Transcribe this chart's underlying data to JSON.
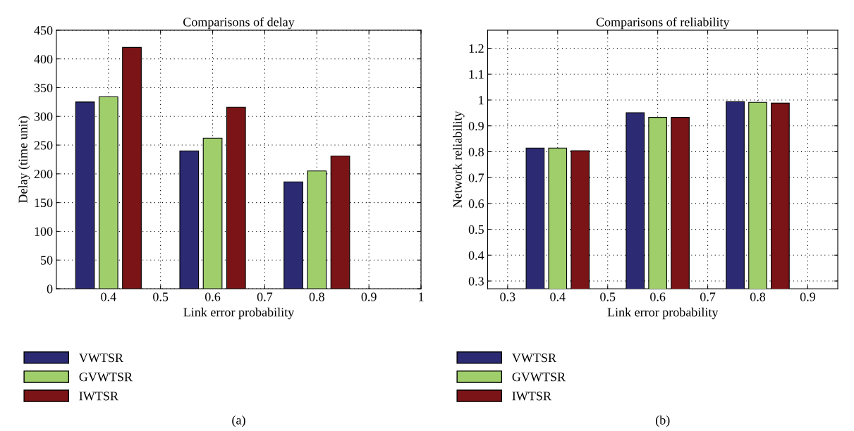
{
  "chart_data": [
    {
      "type": "bar",
      "title": "Comparisons of delay",
      "xlabel": "Link error probability",
      "ylabel": "Delay (time unit)",
      "x": [
        0.4,
        0.6,
        0.8
      ],
      "series": [
        {
          "name": "VWTSR",
          "color": "#2b2a72",
          "values": [
            325,
            240,
            186
          ]
        },
        {
          "name": "GVWTSR",
          "color": "#9fce6b",
          "values": [
            334,
            262,
            205
          ]
        },
        {
          "name": "IWTSR",
          "color": "#7a1416",
          "values": [
            420,
            316,
            231
          ]
        }
      ],
      "xlim": [
        0.3,
        1
      ],
      "xticks": [
        0.4,
        0.5,
        0.6,
        0.7,
        0.8,
        0.9,
        1
      ],
      "ylim": [
        0,
        450
      ],
      "yticks": [
        0,
        50,
        100,
        150,
        200,
        250,
        300,
        350,
        400,
        450
      ],
      "grid": true,
      "legend": "bottom",
      "annotations": [
        "(a)"
      ]
    },
    {
      "type": "bar",
      "title": "Comparisons of reliability",
      "xlabel": "Link error probability",
      "ylabel": "Network reliability",
      "x": [
        0.4,
        0.6,
        0.8
      ],
      "series": [
        {
          "name": "VWTSR",
          "color": "#2b2a72",
          "values": [
            0.814,
            0.951,
            0.994
          ]
        },
        {
          "name": "GVWTSR",
          "color": "#9fce6b",
          "values": [
            0.814,
            0.933,
            0.991
          ]
        },
        {
          "name": "IWTSR",
          "color": "#7a1416",
          "values": [
            0.804,
            0.933,
            0.988
          ]
        }
      ],
      "xlim": [
        0.26,
        0.96
      ],
      "xticks": [
        0.3,
        0.4,
        0.5,
        0.6,
        0.7,
        0.8,
        0.9
      ],
      "ylim": [
        0.27,
        1.27
      ],
      "yticks": [
        0.3,
        0.4,
        0.5,
        0.6,
        0.7,
        0.8,
        0.9,
        1,
        1.1,
        1.2
      ],
      "grid": true,
      "legend": "bottom",
      "annotations": [
        "(b)"
      ]
    }
  ]
}
